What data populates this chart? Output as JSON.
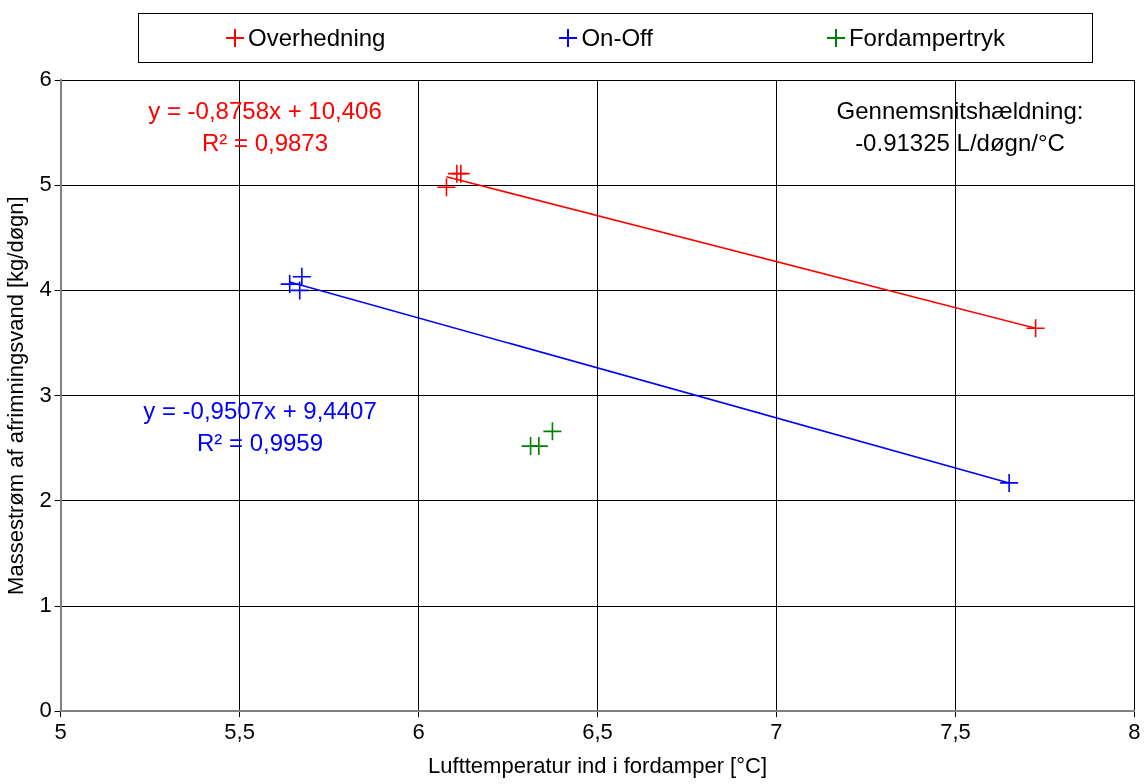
{
  "chart_data": {
    "type": "scatter",
    "xlabel": "Lufttemperatur ind i fordamper [°C]",
    "ylabel": "Massestrøm af afrimningsvand [kg/døgn]",
    "xlim": [
      5,
      8
    ],
    "xticks": [
      5,
      {
        "value": 5.5,
        "label": "5,5"
      },
      6,
      {
        "value": 6.5,
        "label": "6,5"
      },
      7,
      {
        "value": 7.5,
        "label": "7,5"
      },
      8
    ],
    "ylim": [
      0,
      6
    ],
    "yticks": [
      0,
      1,
      2,
      3,
      4,
      5,
      6
    ],
    "grid": true,
    "legend": "top",
    "marker": "cross",
    "series": [
      {
        "name": "Overhedning",
        "color": "#ff0000",
        "x": [
          6.078,
          6.107,
          6.118,
          7.724
        ],
        "values": [
          4.98,
          5.11,
          5.11,
          3.64
        ]
      },
      {
        "name": "On-Off",
        "color": "#0000ff",
        "x": [
          5.64,
          5.668,
          5.674,
          7.65
        ],
        "values": [
          4.06,
          4.0,
          4.13,
          2.17
        ]
      },
      {
        "name": "Fordampertryk",
        "color": "#008000",
        "x": [
          6.313,
          6.336,
          6.374
        ],
        "values": [
          2.52,
          2.52,
          2.66
        ]
      },
      {
        "type": "line",
        "color": "#ff0000",
        "x": [
          6.078,
          7.724
        ],
        "values": [
          5.08,
          3.64
        ],
        "marker": "none"
      },
      {
        "type": "line",
        "color": "#0000ff",
        "x": [
          5.64,
          7.65
        ],
        "values": [
          4.08,
          2.17
        ],
        "marker": "none"
      }
    ],
    "annotations": [
      "y = -0,8758x + 10,406\nR² = 0,9873",
      "y = -0,9507x + 9,4407\nR² = 0,9959",
      "Gennemsnitshældning:\n-0.91325 L/døgn/°C"
    ]
  }
}
